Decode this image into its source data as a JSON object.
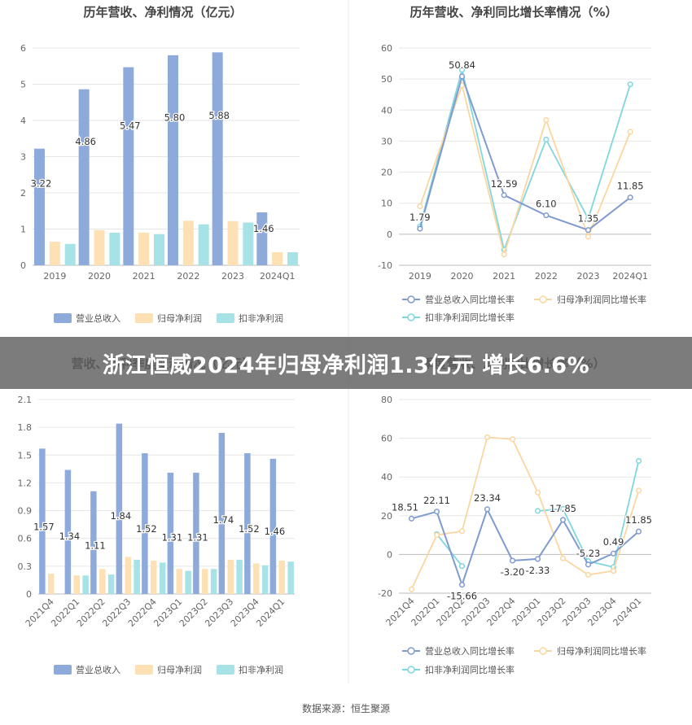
{
  "banner": {
    "headline": "浙江恒威2024年归母净利润1.3亿元 增长6.6%"
  },
  "footer": {
    "source": "数据来源：恒生聚源"
  },
  "colors": {
    "revenue": "#8eaadb",
    "net_profit": "#fde0b4",
    "deducted_profit": "#a6e2e6",
    "grid": "#e6e6e6",
    "axis": "#bbbbbb",
    "text": "#666666",
    "divider": "#eeeeee"
  },
  "chart_data": [
    {
      "id": "annual-amount",
      "type": "bar",
      "title": "历年营收、净利情况（亿元）",
      "categories": [
        "2019",
        "2020",
        "2021",
        "2022",
        "2023",
        "2024Q1"
      ],
      "yticks": [
        "0",
        "1",
        "2",
        "3",
        "4",
        "5",
        "6"
      ],
      "ylim": [
        0,
        6
      ],
      "series": [
        {
          "name": "营业总收入",
          "values": [
            3.22,
            4.86,
            5.47,
            5.8,
            5.88,
            1.46
          ],
          "labels": [
            "3.22",
            "4.86",
            "5.47",
            "5.80",
            "5.88",
            "1.46"
          ]
        },
        {
          "name": "归母净利润",
          "values": [
            0.65,
            0.97,
            0.9,
            1.23,
            1.22,
            0.36
          ]
        },
        {
          "name": "扣非净利润",
          "values": [
            0.59,
            0.9,
            0.86,
            1.13,
            1.18,
            0.36
          ]
        }
      ]
    },
    {
      "id": "annual-growth",
      "type": "line",
      "title": "历年营收、净利同比增长率情况（%）",
      "categories": [
        "2019",
        "2020",
        "2021",
        "2022",
        "2023",
        "2024Q1"
      ],
      "yticks": [
        "-10",
        "0",
        "10",
        "20",
        "30",
        "40",
        "50",
        "60"
      ],
      "ylim": [
        -10,
        60
      ],
      "series": [
        {
          "name": "营业总收入同比增长率",
          "values": [
            1.79,
            50.84,
            12.59,
            6.1,
            1.35,
            11.85
          ],
          "labels": [
            "1.79",
            "50.84",
            "12.59",
            "6.10",
            "1.35",
            "11.85"
          ]
        },
        {
          "name": "归母净利润同比增长率",
          "values": [
            9.0,
            48.0,
            -6.5,
            36.8,
            -0.8,
            33.0
          ]
        },
        {
          "name": "扣非净利润同比增长率",
          "values": [
            2.5,
            53.0,
            -5.0,
            30.5,
            5.0,
            48.3
          ]
        }
      ]
    },
    {
      "id": "quarterly-amount",
      "type": "bar",
      "title": "营收、净利季度变动情况（亿元）",
      "categories": [
        "2021Q4",
        "2022Q1",
        "2022Q2",
        "2022Q3",
        "2022Q4",
        "2023Q1",
        "2023Q2",
        "2023Q3",
        "2023Q4",
        "2024Q1"
      ],
      "yticks": [
        "0",
        "0.3",
        "0.6",
        "0.9",
        "1.2",
        "1.5",
        "1.8",
        "2.1"
      ],
      "ylim": [
        0,
        2.1
      ],
      "series": [
        {
          "name": "营业总收入",
          "values": [
            1.57,
            1.34,
            1.11,
            1.84,
            1.52,
            1.31,
            1.31,
            1.74,
            1.52,
            1.46
          ],
          "labels": [
            "1.57",
            "1.34",
            "1.11",
            "1.84",
            "1.52",
            "1.31",
            "1.31",
            "1.74",
            "1.52",
            "1.46"
          ]
        },
        {
          "name": "归母净利润",
          "values": [
            0.22,
            0.2,
            0.27,
            0.4,
            0.36,
            0.27,
            0.27,
            0.37,
            0.33,
            0.36
          ]
        },
        {
          "name": "扣非净利润",
          "values": [
            0.0,
            0.2,
            0.21,
            0.37,
            0.34,
            0.25,
            0.27,
            0.37,
            0.31,
            0.35
          ]
        }
      ]
    },
    {
      "id": "quarterly-growth",
      "type": "line",
      "title": "季度营收、净利同比增长率（%）",
      "categories": [
        "2021Q4",
        "2022Q1",
        "2022Q2",
        "2022Q3",
        "2022Q4",
        "2023Q1",
        "2023Q2",
        "2023Q3",
        "2023Q4",
        "2024Q1"
      ],
      "yticks": [
        "-20",
        "0",
        "20",
        "40",
        "60",
        "80"
      ],
      "ylim": [
        -20,
        80
      ],
      "series": [
        {
          "name": "营业总收入同比增长率",
          "values": [
            18.51,
            22.11,
            -15.66,
            23.34,
            -3.2,
            -2.33,
            17.85,
            -5.23,
            0.49,
            11.85
          ],
          "labels": [
            "18.51",
            "22.11",
            "-15.66",
            "23.34",
            "-3.20",
            "-2.33",
            "17.85",
            "-5.23",
            "0.49",
            "11.85"
          ]
        },
        {
          "name": "归母净利润同比增长率",
          "values": [
            -18.0,
            10.0,
            12.0,
            60.5,
            59.5,
            32.0,
            -2.0,
            -10.5,
            -8.5,
            33.0
          ]
        },
        {
          "name": "扣非净利润同比增长率",
          "values": [
            null,
            10.5,
            -6.0,
            null,
            null,
            22.5,
            23.5,
            -3.5,
            -6.5,
            48.3
          ]
        }
      ]
    }
  ]
}
